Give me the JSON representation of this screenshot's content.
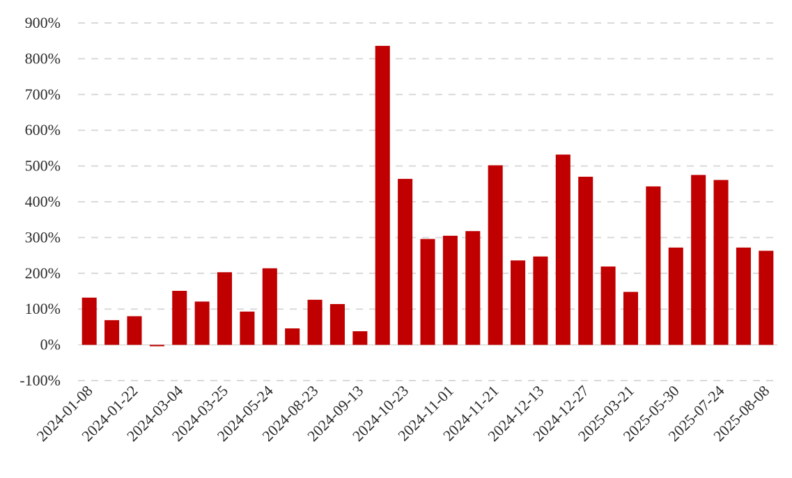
{
  "chart_data": {
    "type": "bar",
    "title": "",
    "xlabel": "",
    "ylabel": "",
    "ylim": [
      -100,
      900
    ],
    "y_ticks": [
      -100,
      0,
      100,
      200,
      300,
      400,
      500,
      600,
      700,
      800,
      900
    ],
    "y_tick_labels": [
      "-100%",
      "0%",
      "100%",
      "200%",
      "300%",
      "400%",
      "500%",
      "600%",
      "700%",
      "800%",
      "900%"
    ],
    "y_unit": "%",
    "grid": "horizontal dashed",
    "legend": "none",
    "bar_color": "#C00000",
    "categories": [
      "2024-01-08",
      "",
      "2024-01-22",
      "",
      "2024-03-04",
      "",
      "2024-03-25",
      "",
      "2024-05-24",
      "",
      "2024-08-23",
      "",
      "2024-09-13",
      "",
      "2024-10-23",
      "",
      "2024-11-01",
      "",
      "2024-11-21",
      "",
      "2024-12-13",
      "",
      "2024-12-27",
      "",
      "2025-03-21",
      "",
      "2025-05-30",
      "",
      "2025-07-24",
      "",
      "2025-08-08"
    ],
    "x_tick_labels": [
      "2024-01-08",
      "2024-01-22",
      "2024-03-04",
      "2024-03-25",
      "2024-05-24",
      "2024-08-23",
      "2024-09-13",
      "2024-10-23",
      "2024-11-01",
      "2024-11-21",
      "2024-12-13",
      "2024-12-27",
      "2025-03-21",
      "2025-05-30",
      "2025-07-24",
      "2025-08-08"
    ],
    "values": [
      132,
      69,
      80,
      -4,
      151,
      121,
      203,
      93,
      214,
      46,
      126,
      114,
      38,
      836,
      464,
      296,
      305,
      318,
      502,
      236,
      247,
      532,
      470,
      219,
      148,
      443,
      272,
      475,
      461,
      272,
      263
    ]
  }
}
